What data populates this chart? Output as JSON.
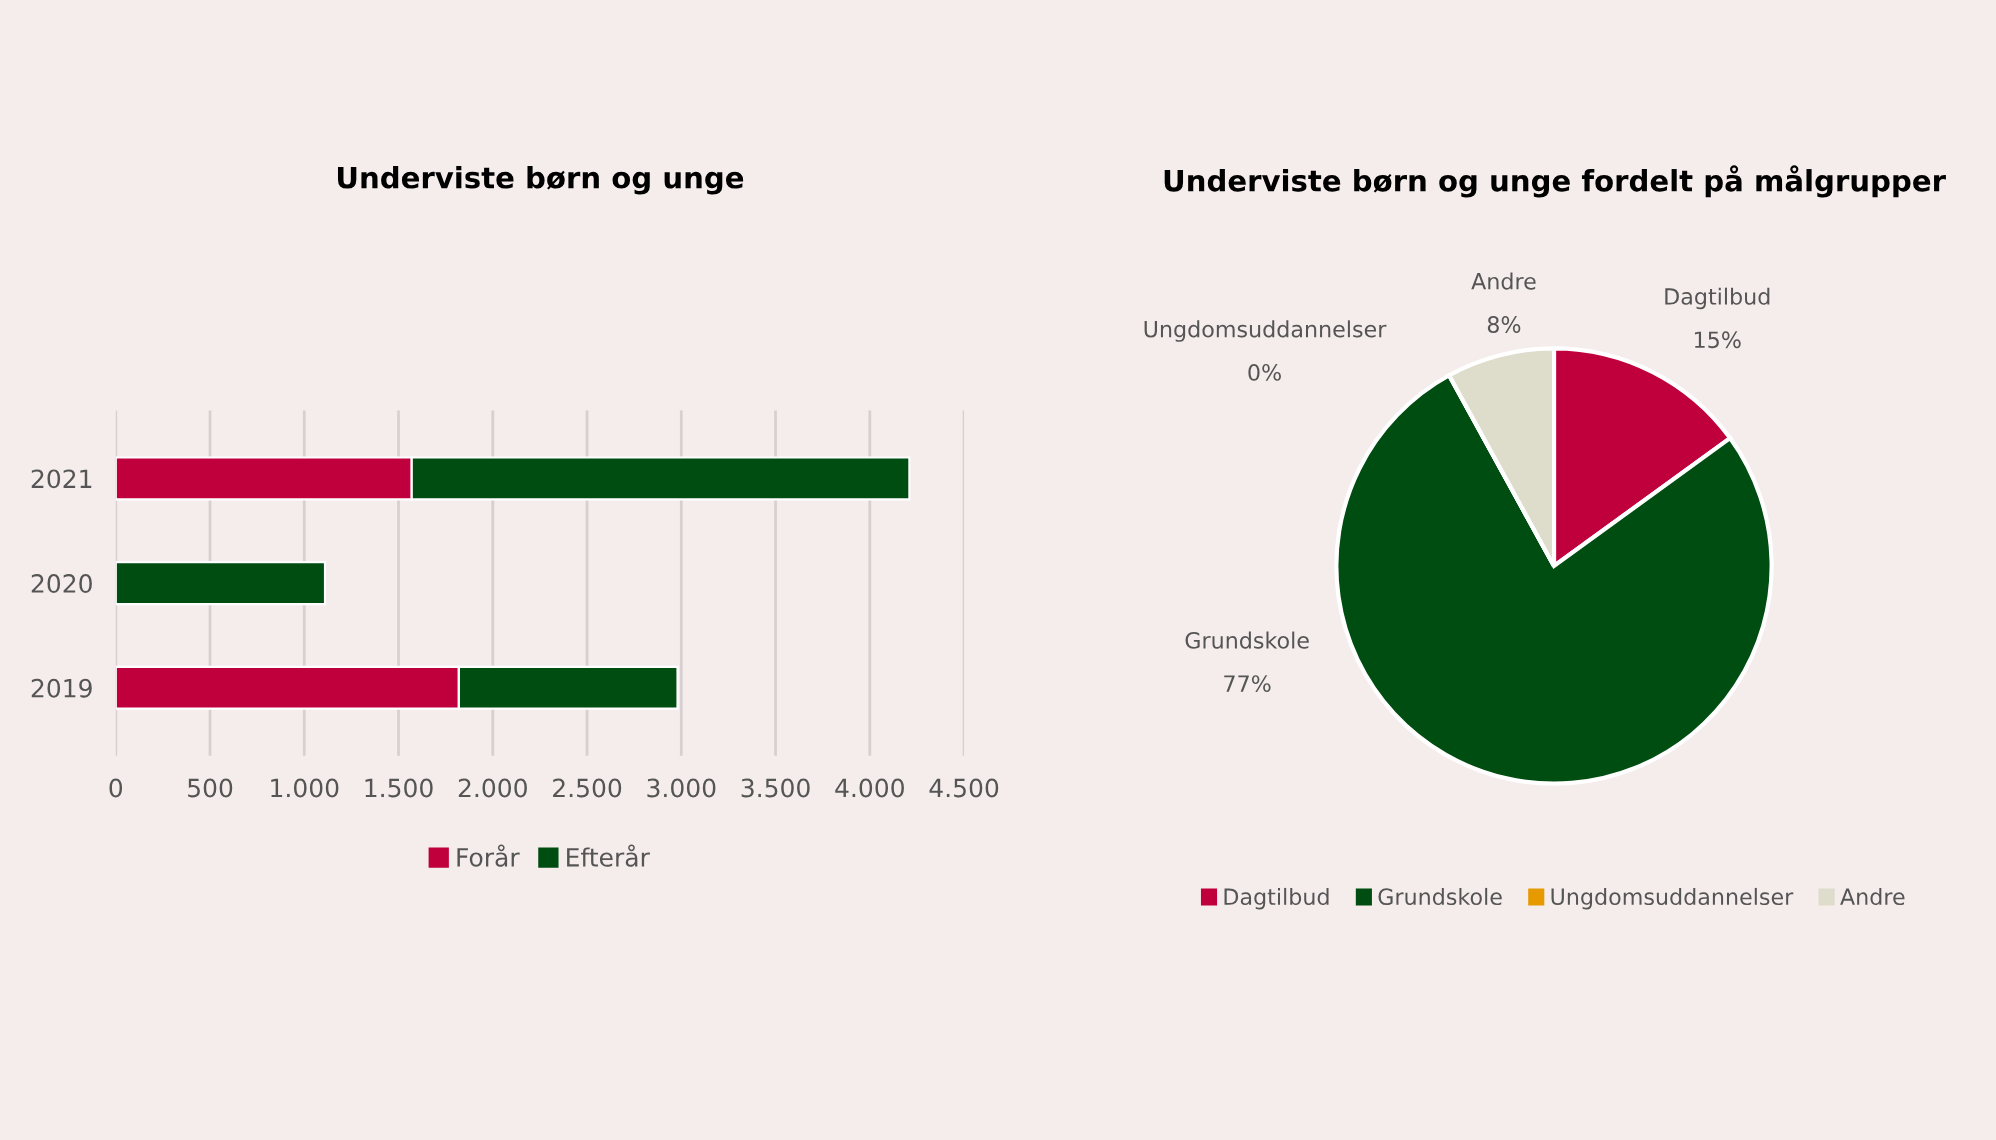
{
  "chart_data": [
    {
      "type": "bar",
      "title": "Underviste børn og unge",
      "orientation": "horizontal",
      "stacked": true,
      "categories": [
        "2021",
        "2020",
        "2019"
      ],
      "series": [
        {
          "name": "Forår",
          "color": "#c0003c",
          "values": [
            1570,
            0,
            1820
          ]
        },
        {
          "name": "Efterår",
          "color": "#004d12",
          "values": [
            2640,
            1110,
            1160
          ]
        }
      ],
      "xlim": [
        0,
        4500
      ],
      "xticks": [
        0,
        {
          "value": 500,
          "label": "500"
        },
        {
          "value": 1000,
          "label": "1.000"
        },
        {
          "value": 1500,
          "label": "1.500"
        },
        {
          "value": 2000,
          "label": "2.000"
        },
        {
          "value": 2500,
          "label": "2.500"
        },
        {
          "value": 3000,
          "label": "3.000"
        },
        {
          "value": 3500,
          "label": "3.500"
        },
        {
          "value": 4000,
          "label": "4.000"
        },
        {
          "value": 4500,
          "label": "4.500"
        }
      ],
      "grid": "x",
      "legend": "bottom"
    },
    {
      "type": "pie",
      "title": "Underviste børn og unge fordelt på målgrupper",
      "categories": [
        "Dagtilbud",
        "Grundskole",
        "Ungdomsuddannelser",
        "Andre"
      ],
      "values": [
        15,
        77,
        0,
        8
      ],
      "value_labels": [
        "15%",
        "77%",
        "0%",
        "8%"
      ],
      "colors": [
        "#c0003c",
        "#004d12",
        "#e69a00",
        "#dedccb"
      ],
      "legend": "bottom"
    }
  ]
}
